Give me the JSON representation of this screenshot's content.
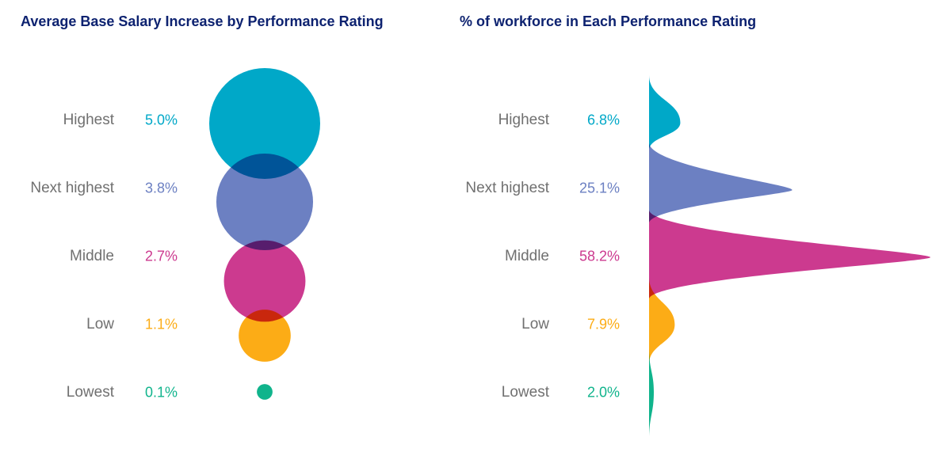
{
  "chart_data": [
    {
      "type": "bubble",
      "title": "Average Base Salary Increase by Performance Rating",
      "categories": [
        "Highest",
        "Next highest",
        "Middle",
        "Low",
        "Lowest"
      ],
      "values": [
        5.0,
        3.8,
        2.7,
        1.1,
        0.1
      ],
      "value_labels": [
        "5.0%",
        "3.8%",
        "2.7%",
        "1.1%",
        "0.1%"
      ],
      "colors": [
        "#00a8c8",
        "#6c80c2",
        "#cc3a8f",
        "#fcac16",
        "#10b48c"
      ]
    },
    {
      "type": "area",
      "title": "% of workforce in Each Performance Rating",
      "categories": [
        "Highest",
        "Next highest",
        "Middle",
        "Low",
        "Lowest"
      ],
      "values": [
        6.8,
        25.1,
        58.2,
        7.9,
        2.0
      ],
      "value_labels": [
        "6.8%",
        "25.1%",
        "58.2%",
        "7.9%",
        "2.0%"
      ],
      "colors": [
        "#00a8c8",
        "#6c80c2",
        "#cc3a8f",
        "#fcac16",
        "#10b48c"
      ]
    }
  ]
}
